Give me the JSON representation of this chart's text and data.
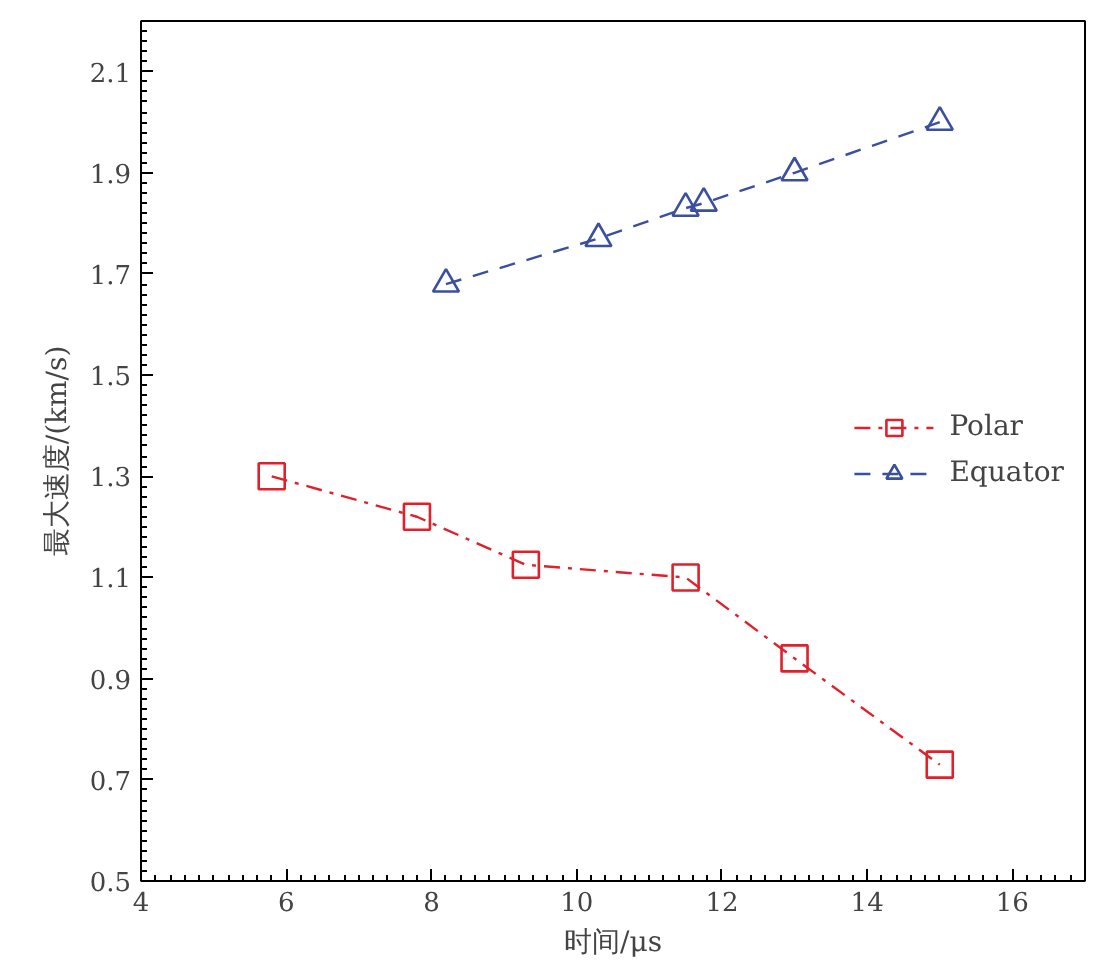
{
  "chart_data": {
    "type": "line",
    "xlabel": "时间/μs",
    "ylabel": "最大速度/(km/s)",
    "xlim": [
      4,
      17
    ],
    "xticks": [
      4,
      6,
      8,
      10,
      12,
      14,
      16
    ],
    "ylim": [
      0.5,
      2.2
    ],
    "yticks": [
      0.5,
      0.7,
      0.9,
      1.1,
      1.3,
      1.5,
      1.7,
      1.9,
      2.1
    ],
    "grid": false,
    "legend": "right",
    "series": [
      {
        "name": "Polar",
        "color": "#e0202a",
        "marker": "square",
        "line_style": "dashdot",
        "x": [
          5.8,
          7.8,
          9.3,
          11.5,
          13.0,
          15.0
        ],
        "values": [
          1.3,
          1.22,
          1.125,
          1.1,
          0.94,
          0.73
        ]
      },
      {
        "name": "Equator",
        "color": "#3a4fa0",
        "marker": "triangle",
        "line_style": "dashed",
        "x": [
          8.2,
          10.3,
          11.5,
          11.75,
          13.0,
          15.0
        ],
        "values": [
          1.68,
          1.77,
          1.83,
          1.84,
          1.9,
          2.0
        ]
      }
    ]
  }
}
